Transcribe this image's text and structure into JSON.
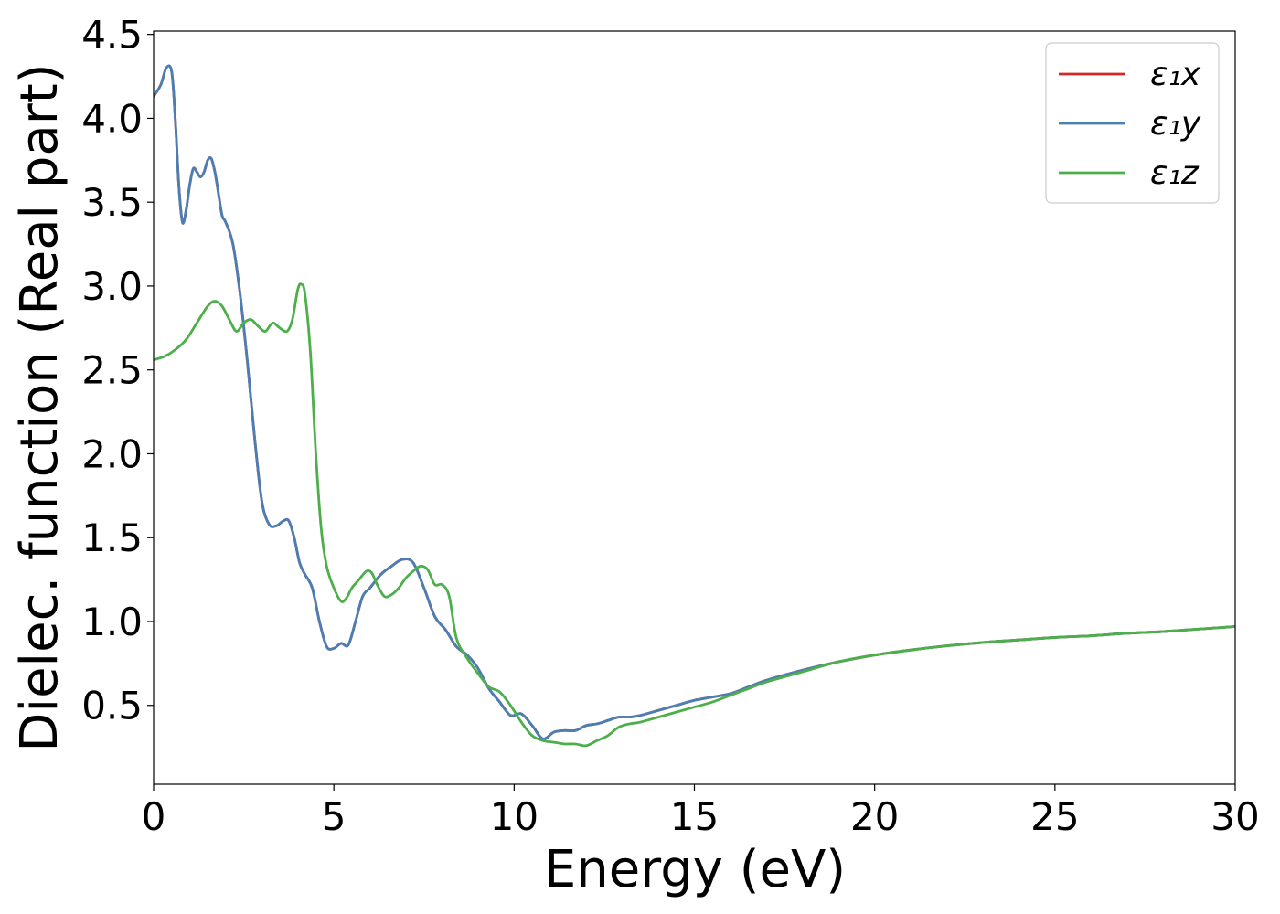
{
  "chart_data": {
    "type": "line",
    "xlabel": "Energy (eV)",
    "ylabel": "Dielec. function (Real part)",
    "xlim": [
      0,
      30
    ],
    "ylim": [
      0.03,
      4.52
    ],
    "xticks": [
      0,
      5,
      10,
      15,
      20,
      25,
      30
    ],
    "xtick_labels": [
      "0",
      "5",
      "10",
      "15",
      "20",
      "25",
      "30"
    ],
    "yticks": [
      0.5,
      1.0,
      1.5,
      2.0,
      2.5,
      3.0,
      3.5,
      4.0,
      4.5
    ],
    "ytick_labels": [
      "0.5",
      "1.0",
      "1.5",
      "2.0",
      "2.5",
      "3.0",
      "3.5",
      "4.0",
      "4.5"
    ],
    "grid": false,
    "legend": {
      "placement": "top-right"
    },
    "series": [
      {
        "name": "ε₁x",
        "color": "#d62728",
        "x": [
          0,
          0.2,
          0.35,
          0.5,
          0.6,
          0.7,
          0.8,
          0.9,
          1.0,
          1.1,
          1.2,
          1.3,
          1.4,
          1.5,
          1.6,
          1.7,
          1.8,
          1.9,
          2.0,
          2.2,
          2.4,
          2.6,
          2.8,
          3.0,
          3.2,
          3.4,
          3.6,
          3.75,
          3.9,
          4.05,
          4.2,
          4.4,
          4.6,
          4.8,
          5.0,
          5.2,
          5.4,
          5.6,
          5.8,
          6.0,
          6.3,
          6.6,
          6.9,
          7.2,
          7.5,
          7.8,
          8.1,
          8.4,
          8.7,
          9.0,
          9.3,
          9.6,
          9.9,
          10.2,
          10.5,
          10.8,
          11.1,
          11.4,
          11.7,
          12.0,
          12.3,
          12.6,
          12.9,
          13.2,
          13.5,
          14.0,
          14.5,
          15.0,
          15.5,
          16.0,
          16.5,
          17.0,
          18.0,
          19.0,
          20.0,
          21.0,
          22.0,
          23.0,
          24.0,
          25.0,
          26.0,
          27.0,
          28.0,
          29.0,
          30.0
        ],
        "y": [
          4.13,
          4.2,
          4.3,
          4.28,
          4.0,
          3.6,
          3.38,
          3.45,
          3.6,
          3.7,
          3.68,
          3.65,
          3.68,
          3.75,
          3.76,
          3.68,
          3.55,
          3.42,
          3.38,
          3.25,
          2.95,
          2.55,
          2.1,
          1.72,
          1.58,
          1.57,
          1.6,
          1.6,
          1.5,
          1.35,
          1.28,
          1.2,
          1.0,
          0.85,
          0.84,
          0.87,
          0.86,
          1.0,
          1.15,
          1.2,
          1.28,
          1.33,
          1.37,
          1.35,
          1.2,
          1.03,
          0.95,
          0.85,
          0.8,
          0.72,
          0.6,
          0.52,
          0.44,
          0.45,
          0.38,
          0.3,
          0.34,
          0.35,
          0.35,
          0.38,
          0.39,
          0.41,
          0.43,
          0.43,
          0.44,
          0.47,
          0.5,
          0.53,
          0.55,
          0.57,
          0.61,
          0.65,
          0.71,
          0.76,
          0.8,
          0.83,
          0.855,
          0.875,
          0.89,
          0.905,
          0.915,
          0.93,
          0.94,
          0.955,
          0.97
        ]
      },
      {
        "name": "ε₁y",
        "color": "#4a7fb5",
        "x": [
          0,
          0.2,
          0.35,
          0.5,
          0.6,
          0.7,
          0.8,
          0.9,
          1.0,
          1.1,
          1.2,
          1.3,
          1.4,
          1.5,
          1.6,
          1.7,
          1.8,
          1.9,
          2.0,
          2.2,
          2.4,
          2.6,
          2.8,
          3.0,
          3.2,
          3.4,
          3.6,
          3.75,
          3.9,
          4.05,
          4.2,
          4.4,
          4.6,
          4.8,
          5.0,
          5.2,
          5.4,
          5.6,
          5.8,
          6.0,
          6.3,
          6.6,
          6.9,
          7.2,
          7.5,
          7.8,
          8.1,
          8.4,
          8.7,
          9.0,
          9.3,
          9.6,
          9.9,
          10.2,
          10.5,
          10.8,
          11.1,
          11.4,
          11.7,
          12.0,
          12.3,
          12.6,
          12.9,
          13.2,
          13.5,
          14.0,
          14.5,
          15.0,
          15.5,
          16.0,
          16.5,
          17.0,
          18.0,
          19.0,
          20.0,
          21.0,
          22.0,
          23.0,
          24.0,
          25.0,
          26.0,
          27.0,
          28.0,
          29.0,
          30.0
        ],
        "y": [
          4.13,
          4.2,
          4.3,
          4.28,
          4.0,
          3.6,
          3.38,
          3.45,
          3.6,
          3.7,
          3.68,
          3.65,
          3.68,
          3.75,
          3.76,
          3.68,
          3.55,
          3.42,
          3.38,
          3.25,
          2.95,
          2.55,
          2.1,
          1.72,
          1.58,
          1.57,
          1.6,
          1.6,
          1.5,
          1.35,
          1.28,
          1.2,
          1.0,
          0.85,
          0.84,
          0.87,
          0.86,
          1.0,
          1.15,
          1.2,
          1.28,
          1.33,
          1.37,
          1.35,
          1.2,
          1.03,
          0.95,
          0.85,
          0.8,
          0.72,
          0.6,
          0.52,
          0.44,
          0.45,
          0.38,
          0.3,
          0.34,
          0.35,
          0.35,
          0.38,
          0.39,
          0.41,
          0.43,
          0.43,
          0.44,
          0.47,
          0.5,
          0.53,
          0.55,
          0.57,
          0.61,
          0.65,
          0.71,
          0.76,
          0.8,
          0.83,
          0.855,
          0.875,
          0.89,
          0.905,
          0.915,
          0.93,
          0.94,
          0.955,
          0.97
        ]
      },
      {
        "name": "ε₁z",
        "color": "#4daf4a",
        "x": [
          0,
          0.3,
          0.6,
          0.9,
          1.2,
          1.5,
          1.7,
          1.9,
          2.1,
          2.3,
          2.5,
          2.7,
          2.9,
          3.1,
          3.3,
          3.5,
          3.7,
          3.85,
          4.0,
          4.1,
          4.2,
          4.35,
          4.5,
          4.65,
          4.8,
          5.0,
          5.2,
          5.35,
          5.5,
          5.7,
          5.9,
          6.05,
          6.2,
          6.4,
          6.6,
          6.8,
          7.0,
          7.2,
          7.4,
          7.6,
          7.8,
          8.0,
          8.2,
          8.4,
          8.7,
          9.0,
          9.3,
          9.6,
          9.9,
          10.2,
          10.5,
          10.8,
          11.1,
          11.4,
          11.7,
          12.0,
          12.3,
          12.6,
          12.9,
          13.2,
          13.5,
          14.0,
          14.5,
          15.0,
          15.5,
          16.0,
          16.5,
          17.0,
          18.0,
          19.0,
          20.0,
          21.0,
          22.0,
          23.0,
          24.0,
          25.0,
          26.0,
          27.0,
          28.0,
          29.0,
          30.0
        ],
        "y": [
          2.56,
          2.58,
          2.62,
          2.68,
          2.78,
          2.88,
          2.91,
          2.88,
          2.8,
          2.73,
          2.78,
          2.8,
          2.76,
          2.73,
          2.78,
          2.75,
          2.73,
          2.8,
          2.98,
          3.01,
          2.95,
          2.6,
          2.0,
          1.55,
          1.33,
          1.2,
          1.12,
          1.14,
          1.2,
          1.25,
          1.3,
          1.29,
          1.22,
          1.15,
          1.16,
          1.2,
          1.26,
          1.3,
          1.33,
          1.31,
          1.22,
          1.22,
          1.15,
          0.9,
          0.78,
          0.69,
          0.61,
          0.58,
          0.5,
          0.4,
          0.32,
          0.29,
          0.28,
          0.27,
          0.27,
          0.26,
          0.29,
          0.32,
          0.37,
          0.39,
          0.4,
          0.43,
          0.46,
          0.49,
          0.52,
          0.56,
          0.6,
          0.64,
          0.7,
          0.76,
          0.8,
          0.83,
          0.855,
          0.875,
          0.89,
          0.905,
          0.915,
          0.93,
          0.94,
          0.955,
          0.97
        ]
      }
    ]
  }
}
